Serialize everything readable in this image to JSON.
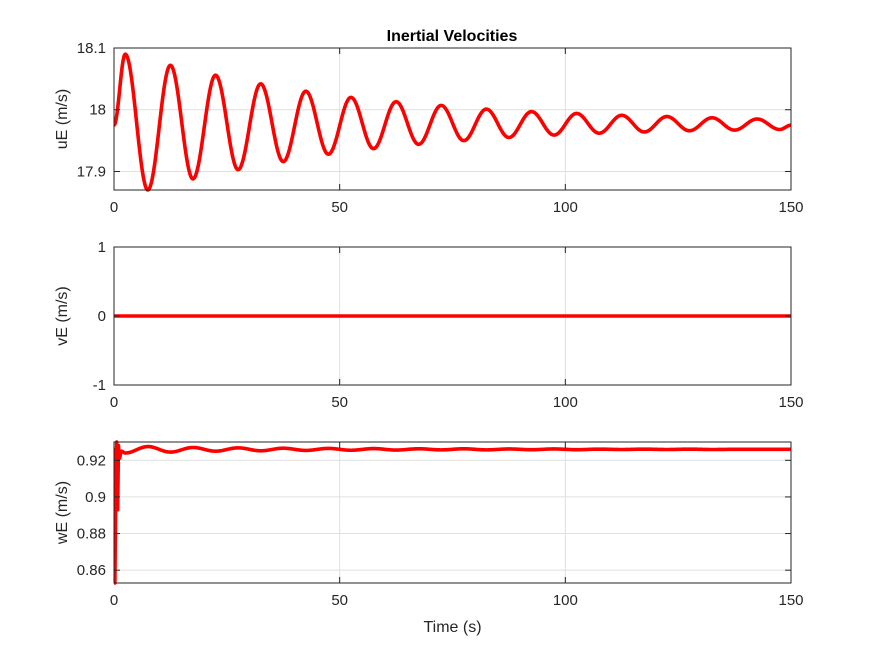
{
  "figure_title": "Inertial Velocities",
  "chart_data": [
    {
      "type": "line",
      "title": "Inertial Velocities",
      "xlabel": "",
      "ylabel": "uE (m/s)",
      "xlim": [
        0,
        150
      ],
      "ylim": [
        17.87,
        18.1
      ],
      "xticks": [
        0,
        50,
        100,
        150
      ],
      "xtick_labels": [
        "0",
        "50",
        "100",
        "150"
      ],
      "yticks": [
        17.9,
        18,
        18.1
      ],
      "ytick_labels": [
        "17.9",
        "18",
        "18.1"
      ],
      "grid": true,
      "color": "#ff0000",
      "series": [
        {
          "x": [
            0,
            2.5,
            7.5,
            12.5,
            17.5,
            22.5,
            27.5,
            32.5,
            37.5,
            42.5,
            47.5,
            52.5,
            57.5,
            62.5,
            67.5,
            72.5,
            77.5,
            82.5,
            87.5,
            92.5,
            97.5,
            102.5,
            107.5,
            112.5,
            117.5,
            122.5,
            127.5,
            132.5,
            137.5,
            142.5,
            147.5,
            150
          ],
          "y": [
            17.975,
            18.09,
            17.87,
            18.072,
            17.888,
            18.056,
            17.903,
            18.042,
            17.916,
            18.03,
            17.928,
            18.02,
            17.937,
            18.013,
            17.944,
            18.007,
            17.95,
            18.001,
            17.955,
            17.997,
            17.959,
            17.994,
            17.962,
            17.991,
            17.964,
            17.989,
            17.966,
            17.987,
            17.967,
            17.985,
            17.968,
            17.975
          ]
        }
      ]
    },
    {
      "type": "line",
      "title": "",
      "xlabel": "",
      "ylabel": "vE (m/s)",
      "xlim": [
        0,
        150
      ],
      "ylim": [
        -1,
        1
      ],
      "xticks": [
        0,
        50,
        100,
        150
      ],
      "xtick_labels": [
        "0",
        "50",
        "100",
        "150"
      ],
      "yticks": [
        -1,
        0,
        1
      ],
      "ytick_labels": [
        "-1",
        "0",
        "1"
      ],
      "grid": true,
      "color": "#ff0000",
      "series": [
        {
          "x": [
            0,
            150
          ],
          "y": [
            0,
            0
          ]
        }
      ]
    },
    {
      "type": "line",
      "title": "",
      "xlabel": "Time (s)",
      "ylabel": "wE (m/s)",
      "xlim": [
        0,
        150
      ],
      "ylim": [
        0.853,
        0.93
      ],
      "xticks": [
        0,
        50,
        100,
        150
      ],
      "xtick_labels": [
        "0",
        "50",
        "100",
        "150"
      ],
      "yticks": [
        0.86,
        0.88,
        0.9,
        0.92
      ],
      "ytick_labels": [
        "0.86",
        "0.88",
        "0.9",
        "0.92"
      ],
      "grid": true,
      "color": "#ff0000",
      "series": [
        {
          "x": [
            0,
            0.2,
            0.4,
            0.6,
            0.8,
            1.0,
            1.2,
            1.6,
            2.5,
            7.5,
            12.5,
            17.5,
            22.5,
            27.5,
            32.5,
            37.5,
            42.5,
            47.5,
            52.5,
            57.5,
            62.5,
            67.5,
            72.5,
            77.5,
            82.5,
            87.5,
            92.5,
            97.5,
            102.5,
            107.5,
            112.5,
            117.5,
            122.5,
            127.5,
            132.5,
            137.5,
            142.5,
            147.5,
            150
          ],
          "y": [
            0.926,
            0.853,
            0.905,
            0.93,
            0.893,
            0.928,
            0.921,
            0.925,
            0.924,
            0.9275,
            0.9245,
            0.927,
            0.925,
            0.9268,
            0.9252,
            0.9266,
            0.9254,
            0.9265,
            0.9255,
            0.9264,
            0.9256,
            0.9263,
            0.9257,
            0.9263,
            0.9257,
            0.9262,
            0.9258,
            0.9262,
            0.9258,
            0.9261,
            0.9259,
            0.9261,
            0.9259,
            0.9261,
            0.9259,
            0.926,
            0.926,
            0.926,
            0.926
          ]
        }
      ]
    }
  ]
}
